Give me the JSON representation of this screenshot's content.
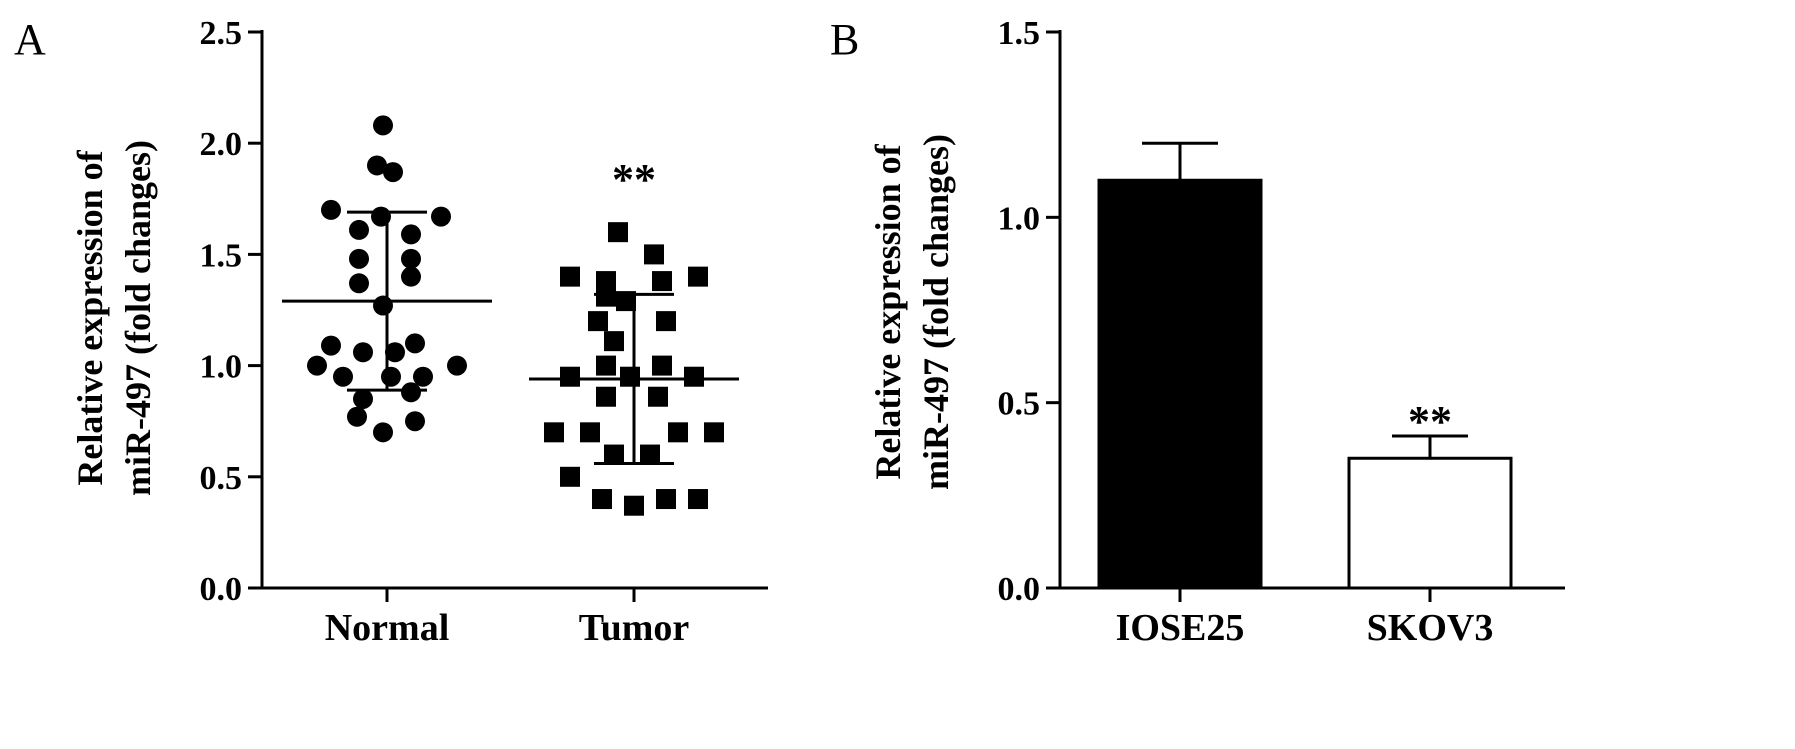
{
  "figure": {
    "background": "#ffffff",
    "ink": "#000000"
  },
  "chart_data": [
    {
      "panel": "A",
      "type": "scatter",
      "title": "",
      "ylabel_lines": [
        "Relative expression of",
        "miR-497 (fold changes)"
      ],
      "ylim": [
        0,
        2.5
      ],
      "yticks": [
        "0.0",
        "0.5",
        "1.0",
        "1.5",
        "2.0",
        "2.5"
      ],
      "categories": [
        "Normal",
        "Tumor"
      ],
      "series": [
        {
          "category": "Normal",
          "marker": "circle",
          "points": [
            {
              "x": -0.02,
              "y": 2.08
            },
            {
              "x": -0.05,
              "y": 1.9
            },
            {
              "x": 0.03,
              "y": 1.87
            },
            {
              "x": -0.28,
              "y": 1.7
            },
            {
              "x": -0.03,
              "y": 1.67
            },
            {
              "x": 0.27,
              "y": 1.67
            },
            {
              "x": -0.14,
              "y": 1.61
            },
            {
              "x": 0.12,
              "y": 1.59
            },
            {
              "x": -0.14,
              "y": 1.48
            },
            {
              "x": 0.12,
              "y": 1.48
            },
            {
              "x": -0.14,
              "y": 1.37
            },
            {
              "x": 0.12,
              "y": 1.4
            },
            {
              "x": -0.02,
              "y": 1.27
            },
            {
              "x": -0.28,
              "y": 1.09
            },
            {
              "x": 0.14,
              "y": 1.1
            },
            {
              "x": -0.12,
              "y": 1.06
            },
            {
              "x": 0.04,
              "y": 1.06
            },
            {
              "x": -0.35,
              "y": 1.0
            },
            {
              "x": 0.35,
              "y": 1.0
            },
            {
              "x": -0.22,
              "y": 0.95
            },
            {
              "x": 0.18,
              "y": 0.95
            },
            {
              "x": 0.02,
              "y": 0.95
            },
            {
              "x": -0.12,
              "y": 0.85
            },
            {
              "x": 0.12,
              "y": 0.88
            },
            {
              "x": -0.15,
              "y": 0.77
            },
            {
              "x": 0.14,
              "y": 0.75
            },
            {
              "x": -0.02,
              "y": 0.7
            }
          ],
          "mean": 1.29,
          "sd": 0.4
        },
        {
          "category": "Tumor",
          "marker": "square",
          "points": [
            {
              "x": -0.08,
              "y": 1.6
            },
            {
              "x": 0.1,
              "y": 1.5
            },
            {
              "x": -0.32,
              "y": 1.4
            },
            {
              "x": 0.32,
              "y": 1.4
            },
            {
              "x": -0.14,
              "y": 1.38
            },
            {
              "x": 0.14,
              "y": 1.38
            },
            {
              "x": -0.14,
              "y": 1.31
            },
            {
              "x": -0.04,
              "y": 1.29
            },
            {
              "x": -0.18,
              "y": 1.2
            },
            {
              "x": 0.16,
              "y": 1.2
            },
            {
              "x": -0.1,
              "y": 1.11
            },
            {
              "x": -0.14,
              "y": 1.0
            },
            {
              "x": 0.14,
              "y": 1.0
            },
            {
              "x": -0.32,
              "y": 0.95
            },
            {
              "x": -0.02,
              "y": 0.95
            },
            {
              "x": 0.3,
              "y": 0.95
            },
            {
              "x": -0.14,
              "y": 0.86
            },
            {
              "x": 0.12,
              "y": 0.86
            },
            {
              "x": -0.4,
              "y": 0.7
            },
            {
              "x": -0.22,
              "y": 0.7
            },
            {
              "x": 0.22,
              "y": 0.7
            },
            {
              "x": 0.4,
              "y": 0.7
            },
            {
              "x": -0.1,
              "y": 0.6
            },
            {
              "x": 0.08,
              "y": 0.6
            },
            {
              "x": -0.32,
              "y": 0.5
            },
            {
              "x": -0.16,
              "y": 0.4
            },
            {
              "x": 0.16,
              "y": 0.4
            },
            {
              "x": 0.32,
              "y": 0.4
            },
            {
              "x": 0.0,
              "y": 0.37
            }
          ],
          "mean": 0.94,
          "sd": 0.38
        }
      ],
      "annotations": [
        {
          "category": "Tumor",
          "text": "**",
          "y": 1.87
        }
      ]
    },
    {
      "panel": "B",
      "type": "bar",
      "title": "",
      "ylabel_lines": [
        "Relative expression of",
        "miR-497 (fold changes)"
      ],
      "ylim": [
        0,
        1.5
      ],
      "yticks": [
        "0.0",
        "0.5",
        "1.0",
        "1.5"
      ],
      "categories": [
        "IOSE25",
        "SKOV3"
      ],
      "values": [
        1.1,
        0.35
      ],
      "errors": [
        0.1,
        0.06
      ],
      "fills": [
        "#000000",
        "#ffffff"
      ],
      "annotations": [
        {
          "category": "SKOV3",
          "text": "**",
          "y": 0.47
        }
      ]
    }
  ]
}
